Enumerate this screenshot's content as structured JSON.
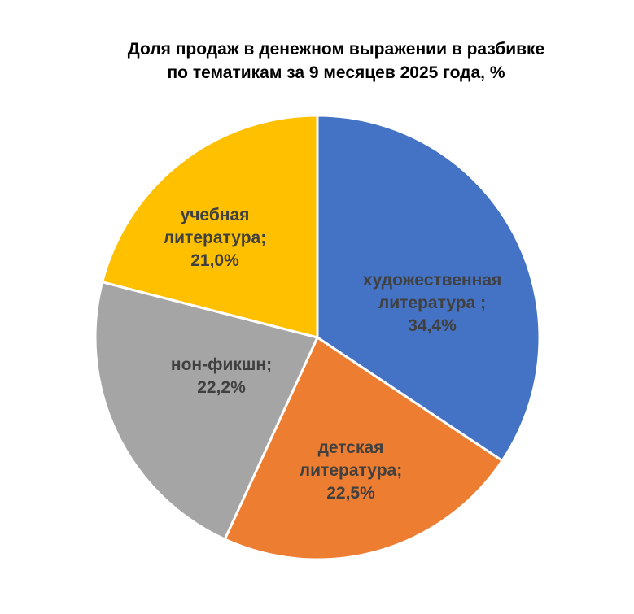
{
  "chart_data": {
    "type": "pie",
    "title_lines": [
      "Доля продаж в денежном выражении в разбивке",
      "по тематикам за 9 месяцев 2025 года, %"
    ],
    "categories": [
      "художественная литература",
      "детская литература",
      "нон-фикшн",
      "учебная литература"
    ],
    "values": [
      34.4,
      22.5,
      22.2,
      21.0
    ],
    "colors": [
      "#4472C4",
      "#ED7D31",
      "#A5A5A5",
      "#FFC000"
    ],
    "data_labels": [
      [
        "художественная",
        "литература  ;",
        "34,4%"
      ],
      [
        "детская",
        "литература;",
        "22,5%"
      ],
      [
        "нон-фикшн;",
        "22,2%"
      ],
      [
        "учебная",
        "литература;",
        "21,0%"
      ]
    ],
    "start_angle": "12 o'clock",
    "direction": "clockwise",
    "legend": "none"
  }
}
